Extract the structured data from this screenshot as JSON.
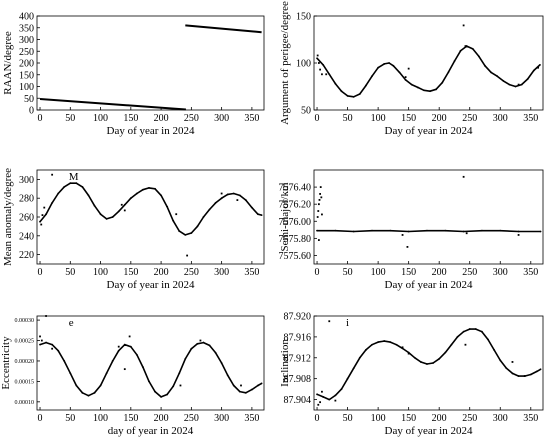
{
  "figure": {
    "background": "#ffffff",
    "ink": "#000000"
  },
  "chart_data": [
    {
      "id": "raan",
      "type": "line",
      "title": "",
      "panel_label": "",
      "xlabel": "Day of year in 2024",
      "ylabel": "RAAN/degree",
      "xlim": [
        -5,
        370
      ],
      "ylim": [
        0,
        400
      ],
      "xticks": [
        0,
        50,
        100,
        150,
        200,
        250,
        300,
        350
      ],
      "yticks": [
        0,
        50,
        100,
        150,
        200,
        250,
        300,
        350,
        400
      ],
      "ytick_labels": [
        "0",
        "50",
        "100",
        "150",
        "200",
        "250",
        "300",
        "350",
        "400"
      ],
      "tick_size": "normal",
      "grid": false,
      "series": [
        {
          "segments": [
            [
              [
                0,
                47
              ],
              [
                241,
                2
              ]
            ],
            [
              [
                240,
                360
              ],
              [
                366,
                331
              ]
            ]
          ]
        }
      ],
      "outliers": []
    },
    {
      "id": "perigee",
      "type": "line",
      "title": "",
      "panel_label": "",
      "xlabel": "Day of year in 2024",
      "ylabel": "Argument of perigee/degree",
      "xlim": [
        -5,
        370
      ],
      "ylim": [
        50,
        150
      ],
      "xticks": [
        0,
        50,
        100,
        150,
        200,
        250,
        300,
        350
      ],
      "yticks": [
        50,
        100,
        150
      ],
      "ytick_labels": [
        "50",
        "100",
        "150"
      ],
      "tick_size": "normal",
      "grid": false,
      "series": [
        {
          "points": [
            [
              0,
              105
            ],
            [
              10,
              98
            ],
            [
              20,
              88
            ],
            [
              30,
              78
            ],
            [
              40,
              70
            ],
            [
              50,
              65
            ],
            [
              60,
              64
            ],
            [
              70,
              67
            ],
            [
              80,
              76
            ],
            [
              90,
              86
            ],
            [
              100,
              95
            ],
            [
              110,
              99
            ],
            [
              118,
              100
            ],
            [
              125,
              97
            ],
            [
              135,
              90
            ],
            [
              145,
              82
            ],
            [
              155,
              77
            ],
            [
              165,
              74
            ],
            [
              175,
              71
            ],
            [
              185,
              70
            ],
            [
              195,
              72
            ],
            [
              205,
              79
            ],
            [
              215,
              90
            ],
            [
              225,
              102
            ],
            [
              235,
              113
            ],
            [
              245,
              118
            ],
            [
              255,
              115
            ],
            [
              265,
              107
            ],
            [
              275,
              97
            ],
            [
              285,
              90
            ],
            [
              295,
              86
            ],
            [
              305,
              81
            ],
            [
              315,
              77
            ],
            [
              325,
              75
            ],
            [
              335,
              77
            ],
            [
              345,
              83
            ],
            [
              355,
              92
            ],
            [
              365,
              98
            ]
          ]
        }
      ],
      "outliers": [
        [
          1,
          108
        ],
        [
          3,
          100
        ],
        [
          5,
          93
        ],
        [
          8,
          88
        ],
        [
          15,
          88
        ],
        [
          145,
          85
        ],
        [
          150,
          94
        ],
        [
          240,
          140
        ],
        [
          243,
          118
        ],
        [
          330,
          77
        ],
        [
          362,
          95
        ]
      ]
    },
    {
      "id": "mean-anomaly",
      "type": "line",
      "title": "",
      "panel_label": "M",
      "xlabel": "Day of year in 2024",
      "ylabel": "Mean anomaly/degree",
      "xlim": [
        -5,
        370
      ],
      "ylim": [
        210,
        310
      ],
      "xticks": [
        0,
        50,
        100,
        150,
        200,
        250,
        300,
        350
      ],
      "yticks": [
        220,
        240,
        260,
        280,
        300
      ],
      "ytick_labels": [
        "220",
        "240",
        "260",
        "280",
        "300"
      ],
      "tick_size": "normal",
      "grid": false,
      "series": [
        {
          "points": [
            [
              0,
              255
            ],
            [
              10,
              263
            ],
            [
              20,
              275
            ],
            [
              30,
              285
            ],
            [
              40,
              292
            ],
            [
              50,
              296
            ],
            [
              60,
              296
            ],
            [
              70,
              292
            ],
            [
              80,
              283
            ],
            [
              90,
              272
            ],
            [
              100,
              263
            ],
            [
              110,
              258
            ],
            [
              120,
              260
            ],
            [
              130,
              266
            ],
            [
              140,
              273
            ],
            [
              150,
              280
            ],
            [
              160,
              285
            ],
            [
              170,
              289
            ],
            [
              180,
              291
            ],
            [
              190,
              290
            ],
            [
              200,
              283
            ],
            [
              210,
              271
            ],
            [
              220,
              256
            ],
            [
              230,
              245
            ],
            [
              240,
              241
            ],
            [
              250,
              243
            ],
            [
              260,
              250
            ],
            [
              270,
              260
            ],
            [
              280,
              268
            ],
            [
              290,
              275
            ],
            [
              300,
              280
            ],
            [
              310,
              284
            ],
            [
              320,
              285
            ],
            [
              330,
              283
            ],
            [
              340,
              278
            ],
            [
              350,
              270
            ],
            [
              360,
              263
            ],
            [
              366,
              262
            ]
          ]
        }
      ],
      "outliers": [
        [
          2,
          252
        ],
        [
          4,
          262
        ],
        [
          7,
          270
        ],
        [
          20,
          305
        ],
        [
          135,
          273
        ],
        [
          140,
          267
        ],
        [
          225,
          263
        ],
        [
          243,
          219
        ],
        [
          300,
          285
        ],
        [
          326,
          278
        ]
      ]
    },
    {
      "id": "semi-major",
      "type": "line",
      "title": "",
      "panel_label": "",
      "xlabel": "Day of year in 2024",
      "ylabel": "Semi-major/km",
      "xlim": [
        -5,
        370
      ],
      "ylim": [
        7575.5,
        7576.6
      ],
      "xticks": [
        0,
        50,
        100,
        150,
        200,
        250,
        300,
        350
      ],
      "yticks": [
        7575.6,
        7575.8,
        7576.0,
        7576.2,
        7576.4
      ],
      "ytick_labels": [
        "7575.60",
        "7575.80",
        "7576.00",
        "7576.20",
        "7576.40"
      ],
      "tick_size": "normal",
      "grid": false,
      "series": [
        {
          "points": [
            [
              0,
              7575.89
            ],
            [
              30,
              7575.89
            ],
            [
              60,
              7575.88
            ],
            [
              90,
              7575.89
            ],
            [
              120,
              7575.89
            ],
            [
              150,
              7575.88
            ],
            [
              180,
              7575.89
            ],
            [
              210,
              7575.89
            ],
            [
              240,
              7575.88
            ],
            [
              270,
              7575.89
            ],
            [
              300,
              7575.89
            ],
            [
              330,
              7575.88
            ],
            [
              366,
              7575.88
            ]
          ]
        }
      ],
      "outliers": [
        [
          1,
          7576.05
        ],
        [
          2,
          7576.12
        ],
        [
          3,
          7576.2
        ],
        [
          4,
          7576.25
        ],
        [
          5,
          7576.32
        ],
        [
          6,
          7576.4
        ],
        [
          7,
          7576.28
        ],
        [
          8,
          7576.08
        ],
        [
          3,
          7575.78
        ],
        [
          140,
          7575.84
        ],
        [
          148,
          7575.7
        ],
        [
          240,
          7576.52
        ],
        [
          245,
          7575.86
        ],
        [
          330,
          7575.84
        ]
      ]
    },
    {
      "id": "eccentricity",
      "type": "line",
      "title": "",
      "panel_label": "e",
      "xlabel": "day of year in 2024",
      "ylabel": "Eccentricity",
      "xlim": [
        -5,
        370
      ],
      "ylim": [
        8e-05,
        0.00031
      ],
      "xticks": [
        0,
        50,
        100,
        150,
        200,
        250,
        300,
        350
      ],
      "yticks": [
        0.0001,
        0.00015,
        0.0002,
        0.00025,
        0.0003
      ],
      "ytick_labels": [
        "0.00010",
        "0.00015",
        "0.00020",
        "0.00025",
        "0.00030"
      ],
      "tick_size": "small",
      "grid": false,
      "series": [
        {
          "points": [
            [
              0,
              0.00024
            ],
            [
              10,
              0.000245
            ],
            [
              20,
              0.00024
            ],
            [
              30,
              0.000225
            ],
            [
              40,
              0.0002
            ],
            [
              50,
              0.00017
            ],
            [
              60,
              0.00014
            ],
            [
              70,
              0.000122
            ],
            [
              80,
              0.000115
            ],
            [
              90,
              0.000122
            ],
            [
              100,
              0.00014
            ],
            [
              110,
              0.00017
            ],
            [
              120,
              0.0002
            ],
            [
              130,
              0.000225
            ],
            [
              140,
              0.00024
            ],
            [
              150,
              0.000235
            ],
            [
              160,
              0.000215
            ],
            [
              170,
              0.000185
            ],
            [
              180,
              0.00015
            ],
            [
              190,
              0.000125
            ],
            [
              200,
              0.000112
            ],
            [
              210,
              0.000118
            ],
            [
              220,
              0.000138
            ],
            [
              230,
              0.00017
            ],
            [
              240,
              0.000205
            ],
            [
              250,
              0.00023
            ],
            [
              260,
              0.000242
            ],
            [
              270,
              0.000245
            ],
            [
              280,
              0.000238
            ],
            [
              290,
              0.00022
            ],
            [
              300,
              0.000195
            ],
            [
              310,
              0.000165
            ],
            [
              320,
              0.00014
            ],
            [
              330,
              0.000125
            ],
            [
              340,
              0.000122
            ],
            [
              350,
              0.00013
            ],
            [
              360,
              0.00014
            ],
            [
              366,
              0.000145
            ]
          ]
        }
      ],
      "outliers": [
        [
          0,
          0.00026
        ],
        [
          3,
          0.00025
        ],
        [
          10,
          0.00031
        ],
        [
          20,
          0.00023
        ],
        [
          130,
          0.000235
        ],
        [
          140,
          0.00018
        ],
        [
          148,
          0.00026
        ],
        [
          232,
          0.00014
        ],
        [
          265,
          0.00025
        ],
        [
          332,
          0.00014
        ]
      ]
    },
    {
      "id": "inclination",
      "type": "line",
      "title": "",
      "panel_label": "i",
      "xlabel": "Day of year in 2024",
      "ylabel": "Inclination",
      "xlim": [
        -5,
        370
      ],
      "ylim": [
        87.902,
        87.92
      ],
      "xticks": [
        0,
        50,
        100,
        150,
        200,
        250,
        300,
        350
      ],
      "yticks": [
        87.904,
        87.908,
        87.912,
        87.916,
        87.92
      ],
      "ytick_labels": [
        "87.904",
        "87.908",
        "87.912",
        "87.916",
        "87.920"
      ],
      "tick_size": "normal",
      "grid": false,
      "series": [
        {
          "points": [
            [
              0,
              87.905
            ],
            [
              10,
              87.9045
            ],
            [
              20,
              87.904
            ],
            [
              30,
              87.9048
            ],
            [
              40,
              87.906
            ],
            [
              50,
              87.908
            ],
            [
              60,
              87.91
            ],
            [
              70,
              87.912
            ],
            [
              80,
              87.9135
            ],
            [
              90,
              87.9145
            ],
            [
              100,
              87.915
            ],
            [
              110,
              87.9152
            ],
            [
              120,
              87.915
            ],
            [
              130,
              87.9145
            ],
            [
              140,
              87.9138
            ],
            [
              150,
              87.913
            ],
            [
              160,
              87.912
            ],
            [
              170,
              87.9112
            ],
            [
              180,
              87.9108
            ],
            [
              190,
              87.911
            ],
            [
              200,
              87.9118
            ],
            [
              210,
              87.913
            ],
            [
              220,
              87.9145
            ],
            [
              230,
              87.916
            ],
            [
              240,
              87.917
            ],
            [
              250,
              87.9175
            ],
            [
              260,
              87.9175
            ],
            [
              270,
              87.917
            ],
            [
              280,
              87.9155
            ],
            [
              290,
              87.9135
            ],
            [
              300,
              87.9115
            ],
            [
              310,
              87.91
            ],
            [
              320,
              87.909
            ],
            [
              330,
              87.9085
            ],
            [
              340,
              87.9085
            ],
            [
              350,
              87.9088
            ],
            [
              360,
              87.9094
            ],
            [
              366,
              87.9098
            ]
          ]
        }
      ],
      "outliers": [
        [
          2,
          87.903
        ],
        [
          5,
          87.9035
        ],
        [
          8,
          87.9055
        ],
        [
          20,
          87.919
        ],
        [
          30,
          87.9038
        ],
        [
          140,
          87.914
        ],
        [
          150,
          87.9128
        ],
        [
          243,
          87.9145
        ],
        [
          320,
          87.9112
        ],
        [
          340,
          87.9085
        ]
      ]
    }
  ]
}
